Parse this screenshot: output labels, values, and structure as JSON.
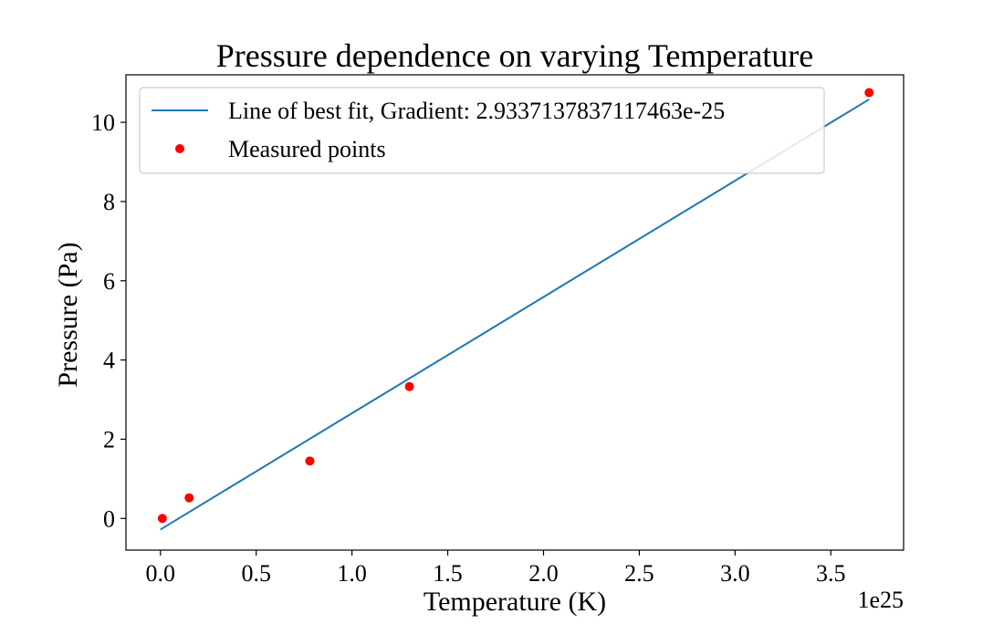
{
  "chart_data": {
    "type": "scatter",
    "title": "Pressure dependence on varying Temperature",
    "xlabel": "Temperature (K)",
    "ylabel": "Pressure (Pa)",
    "x_offset_label": "1e25",
    "xlim": [
      -0.18,
      3.88
    ],
    "ylim": [
      -0.8,
      11.2
    ],
    "x_ticks": [
      0.0,
      0.5,
      1.0,
      1.5,
      2.0,
      2.5,
      3.0,
      3.5
    ],
    "x_tick_labels": [
      "0.0",
      "0.5",
      "1.0",
      "1.5",
      "2.0",
      "2.5",
      "3.0",
      "3.5"
    ],
    "y_ticks": [
      0,
      2,
      4,
      6,
      8,
      10
    ],
    "y_tick_labels": [
      "0",
      "2",
      "4",
      "6",
      "8",
      "10"
    ],
    "grid": false,
    "legend_position": "top-left",
    "series": [
      {
        "name": "Line of best fit, Gradient: 2.9337137837117463e-25",
        "kind": "line",
        "color": "#1f77b4",
        "x": [
          0.0,
          3.7
        ],
        "y": [
          -0.28,
          10.58
        ]
      },
      {
        "name": "Measured points",
        "kind": "scatter",
        "color": "#ff0000",
        "x": [
          0.01,
          0.15,
          0.78,
          1.3,
          3.7
        ],
        "y": [
          0.0,
          0.52,
          1.45,
          3.33,
          10.75
        ]
      }
    ]
  }
}
